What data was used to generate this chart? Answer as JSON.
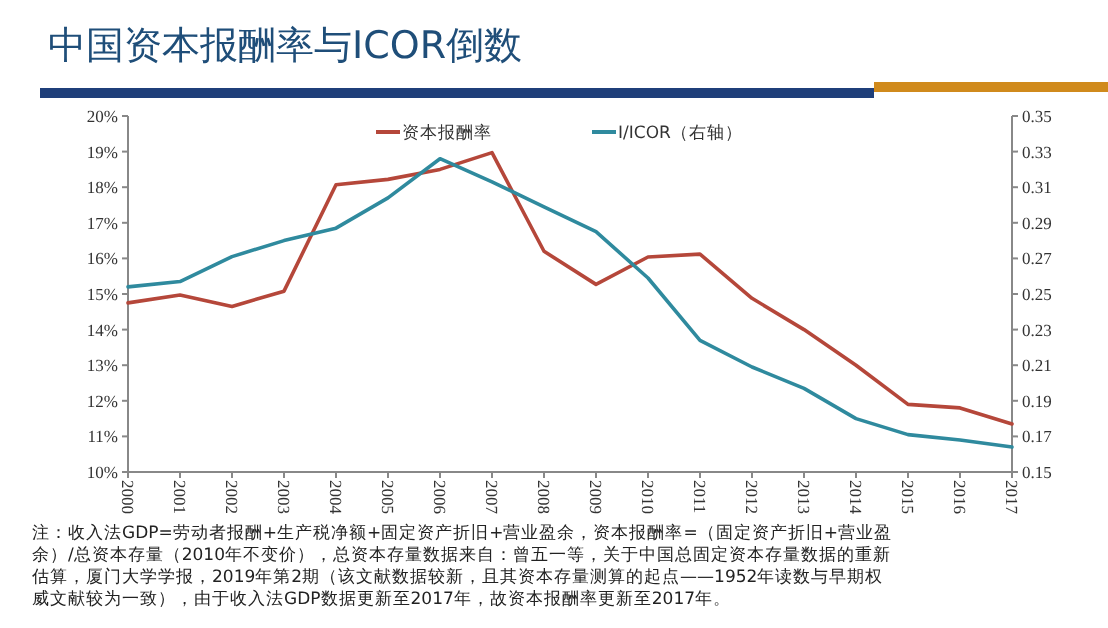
{
  "chart_data": {
    "type": "line",
    "title": "中国资本报酬率与ICOR倒数",
    "categories": [
      "2000",
      "2001",
      "2002",
      "2003",
      "2004",
      "2005",
      "2006",
      "2007",
      "2008",
      "2009",
      "2010",
      "2011",
      "2012",
      "2013",
      "2014",
      "2015",
      "2016",
      "2017"
    ],
    "series": [
      {
        "name": "资本报酬率",
        "color": "#b5473a",
        "values": [
          14.75,
          14.97,
          14.65,
          15.08,
          18.07,
          18.22,
          18.5,
          18.97,
          16.2,
          15.27,
          16.04,
          16.12,
          14.88,
          14.0,
          13.0,
          11.9,
          11.8,
          11.35
        ]
      },
      {
        "name": "I/ICOR（右轴）",
        "color": "#2f8a9e",
        "axis": "y2",
        "values": [
          0.254,
          0.257,
          0.271,
          0.28,
          0.287,
          0.304,
          0.326,
          0.313,
          0.299,
          0.285,
          0.259,
          0.224,
          0.209,
          0.197,
          0.18,
          0.171,
          0.168,
          0.164
        ]
      }
    ],
    "ylim": [
      10,
      20
    ],
    "yticks": [
      {
        "value": 10,
        "label": "10%"
      },
      {
        "value": 11,
        "label": "11%"
      },
      {
        "value": 12,
        "label": "12%"
      },
      {
        "value": 13,
        "label": "13%"
      },
      {
        "value": 14,
        "label": "14%"
      },
      {
        "value": 15,
        "label": "15%"
      },
      {
        "value": 16,
        "label": "16%"
      },
      {
        "value": 17,
        "label": "17%"
      },
      {
        "value": 18,
        "label": "18%"
      },
      {
        "value": 19,
        "label": "19%"
      },
      {
        "value": 20,
        "label": "20%"
      }
    ],
    "y2lim": [
      0.15,
      0.35
    ],
    "y2ticks": [
      0.15,
      0.17,
      0.19,
      0.21,
      0.23,
      0.25,
      0.27,
      0.29,
      0.31,
      0.33,
      0.35
    ],
    "legend": "top",
    "grid": false,
    "marker": "none",
    "line_style": "solid",
    "annotations": [
      "注：收入法GDP=劳动者报酬+生产税净额+固定资产折旧+营业盈余，资本报酬率=（固定资产折旧+营业盈余）/总资本存量（2010年不变价），总资本存量数据来自：曾五一等，关于中国总固定资本存量数据的重新估算，厦门大学学报，2019年第2期（该文献数据较新，且其资本存量测算的起点——1952年读数与早期权威文献较为一致），由于收入法GDP数据更新至2017年，故资本报酬率更新至2017年。"
    ]
  }
}
